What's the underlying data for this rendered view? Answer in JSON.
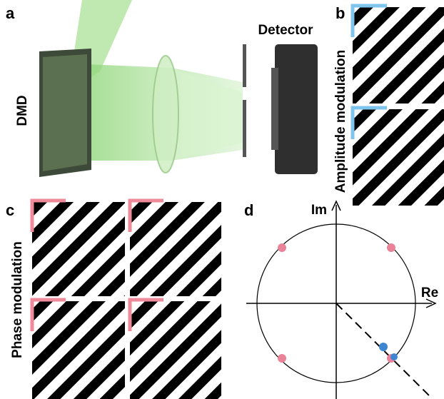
{
  "panels": {
    "a": {
      "label": "a",
      "dmd": "DMD",
      "detector": "Detector"
    },
    "b": {
      "label": "b",
      "title": "Amplitude modulation"
    },
    "c": {
      "label": "c",
      "title": "Phase modulation"
    },
    "d": {
      "label": "d",
      "im_axis": "Im",
      "re_axis": "Re"
    }
  }
}
